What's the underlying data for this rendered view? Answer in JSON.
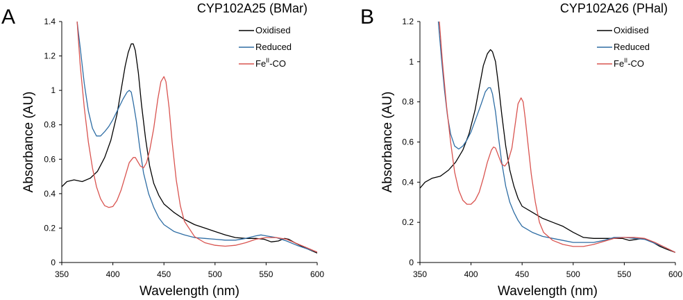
{
  "colors": {
    "axis": "#000000",
    "series": [
      "#000000",
      "#2e6da4",
      "#d9534f"
    ]
  },
  "chart_data": [
    {
      "type": "line",
      "panel_letter": "A",
      "title": "CYP102A25 (BMar)",
      "xlabel": "Wavelength (nm)",
      "ylabel": "Absorbance (AU)",
      "xlim": [
        350,
        600
      ],
      "ylim": [
        0,
        1.4
      ],
      "x_ticks": [
        "350",
        "400",
        "450",
        "500",
        "550",
        "600"
      ],
      "y_ticks": [
        "0",
        "0.2",
        "0.4",
        "0.6",
        "0.8",
        "1",
        "1.2",
        "1.4"
      ],
      "grid": false,
      "legend_position": "top-right",
      "series": [
        {
          "name": "Oxidised",
          "x": [
            350,
            355,
            362,
            370,
            378,
            385,
            392,
            398,
            404,
            408,
            412,
            415,
            418,
            420,
            422,
            425,
            428,
            432,
            436,
            440,
            445,
            450,
            460,
            470,
            480,
            490,
            500,
            510,
            520,
            530,
            540,
            548,
            555,
            562,
            568,
            572,
            578,
            585,
            592,
            600
          ],
          "y": [
            0.44,
            0.47,
            0.48,
            0.47,
            0.49,
            0.53,
            0.61,
            0.71,
            0.86,
            1.0,
            1.14,
            1.22,
            1.27,
            1.27,
            1.23,
            1.1,
            0.92,
            0.72,
            0.56,
            0.46,
            0.39,
            0.34,
            0.29,
            0.25,
            0.22,
            0.2,
            0.18,
            0.16,
            0.145,
            0.14,
            0.14,
            0.135,
            0.12,
            0.125,
            0.14,
            0.135,
            0.115,
            0.095,
            0.075,
            0.055
          ]
        },
        {
          "name": "Reduced",
          "x": [
            365,
            368,
            372,
            376,
            380,
            384,
            388,
            392,
            396,
            400,
            405,
            410,
            414,
            416,
            418,
            420,
            423,
            426,
            430,
            435,
            440,
            445,
            450,
            460,
            470,
            480,
            490,
            500,
            510,
            520,
            530,
            540,
            545,
            550,
            560,
            570,
            580,
            590,
            600
          ],
          "y": [
            1.4,
            1.25,
            1.04,
            0.88,
            0.78,
            0.735,
            0.735,
            0.76,
            0.79,
            0.83,
            0.89,
            0.95,
            0.99,
            1.0,
            0.99,
            0.93,
            0.82,
            0.68,
            0.52,
            0.4,
            0.32,
            0.26,
            0.22,
            0.18,
            0.16,
            0.145,
            0.14,
            0.135,
            0.13,
            0.13,
            0.14,
            0.155,
            0.16,
            0.155,
            0.145,
            0.125,
            0.1,
            0.08,
            0.06
          ]
        },
        {
          "name": "FeII-CO",
          "x": [
            365,
            368,
            372,
            376,
            380,
            384,
            388,
            392,
            396,
            400,
            404,
            408,
            412,
            416,
            420,
            422,
            424,
            427,
            430,
            433,
            436,
            440,
            444,
            447,
            450,
            452,
            455,
            458,
            462,
            466,
            470,
            480,
            490,
            500,
            510,
            520,
            530,
            540,
            550,
            560,
            570,
            580,
            590,
            600
          ],
          "y": [
            1.4,
            1.15,
            0.9,
            0.7,
            0.55,
            0.44,
            0.37,
            0.33,
            0.32,
            0.325,
            0.36,
            0.42,
            0.5,
            0.58,
            0.61,
            0.61,
            0.59,
            0.56,
            0.55,
            0.58,
            0.65,
            0.78,
            0.95,
            1.05,
            1.08,
            1.05,
            0.9,
            0.7,
            0.48,
            0.33,
            0.24,
            0.15,
            0.115,
            0.1,
            0.095,
            0.1,
            0.115,
            0.135,
            0.145,
            0.145,
            0.135,
            0.11,
            0.085,
            0.06
          ]
        }
      ],
      "legend": {
        "entries": [
          {
            "base": "Oxidised",
            "sup": "",
            "rest": ""
          },
          {
            "base": "Reduced",
            "sup": "",
            "rest": ""
          },
          {
            "base": "Fe",
            "sup": "II",
            "rest": "-CO"
          }
        ]
      }
    },
    {
      "type": "line",
      "panel_letter": "B",
      "title": "CYP102A26 (PHal)",
      "xlabel": "Wavelength (nm)",
      "ylabel": "Absorbance (AU)",
      "xlim": [
        350,
        600
      ],
      "ylim": [
        0,
        1.2
      ],
      "x_ticks": [
        "350",
        "400",
        "450",
        "500",
        "550",
        "600"
      ],
      "y_ticks": [
        "0",
        "0.2",
        "0.4",
        "0.6",
        "0.8",
        "1",
        "1.2"
      ],
      "grid": false,
      "legend_position": "top-right",
      "series": [
        {
          "name": "Oxidised",
          "x": [
            350,
            355,
            362,
            370,
            378,
            385,
            392,
            398,
            404,
            408,
            412,
            416,
            419,
            421,
            424,
            427,
            430,
            434,
            438,
            442,
            446,
            450,
            460,
            470,
            480,
            490,
            500,
            510,
            520,
            530,
            540,
            548,
            555,
            562,
            568,
            572,
            578,
            585,
            592,
            600
          ],
          "y": [
            0.37,
            0.4,
            0.42,
            0.43,
            0.46,
            0.5,
            0.56,
            0.64,
            0.76,
            0.87,
            0.98,
            1.04,
            1.06,
            1.05,
            1.0,
            0.88,
            0.74,
            0.58,
            0.46,
            0.38,
            0.32,
            0.28,
            0.25,
            0.22,
            0.2,
            0.18,
            0.15,
            0.125,
            0.12,
            0.12,
            0.12,
            0.12,
            0.11,
            0.115,
            0.12,
            0.115,
            0.1,
            0.08,
            0.065,
            0.05
          ]
        },
        {
          "name": "Reduced",
          "x": [
            368,
            371,
            374,
            377,
            380,
            384,
            388,
            392,
            396,
            400,
            405,
            410,
            414,
            417,
            419,
            421,
            424,
            427,
            430,
            434,
            438,
            442,
            446,
            450,
            460,
            470,
            480,
            490,
            500,
            510,
            520,
            530,
            540,
            550,
            560,
            570,
            580,
            590,
            600
          ],
          "y": [
            1.2,
            1.02,
            0.86,
            0.73,
            0.64,
            0.58,
            0.565,
            0.58,
            0.61,
            0.65,
            0.72,
            0.79,
            0.85,
            0.87,
            0.87,
            0.84,
            0.75,
            0.62,
            0.5,
            0.38,
            0.3,
            0.25,
            0.21,
            0.18,
            0.15,
            0.13,
            0.12,
            0.11,
            0.1,
            0.1,
            0.1,
            0.11,
            0.125,
            0.125,
            0.12,
            0.115,
            0.095,
            0.075,
            0.05
          ]
        },
        {
          "name": "FeII-CO",
          "x": [
            369,
            372,
            376,
            380,
            384,
            388,
            392,
            396,
            400,
            404,
            408,
            412,
            416,
            420,
            422,
            424,
            427,
            430,
            433,
            436,
            440,
            443,
            446,
            449,
            451,
            453,
            456,
            459,
            463,
            467,
            471,
            480,
            490,
            500,
            510,
            520,
            530,
            540,
            550,
            560,
            570,
            580,
            590,
            600
          ],
          "y": [
            1.2,
            1.0,
            0.78,
            0.6,
            0.45,
            0.36,
            0.31,
            0.29,
            0.29,
            0.31,
            0.35,
            0.42,
            0.5,
            0.56,
            0.575,
            0.57,
            0.53,
            0.49,
            0.48,
            0.5,
            0.57,
            0.68,
            0.79,
            0.82,
            0.8,
            0.72,
            0.58,
            0.44,
            0.3,
            0.2,
            0.15,
            0.11,
            0.09,
            0.08,
            0.08,
            0.09,
            0.105,
            0.12,
            0.125,
            0.125,
            0.12,
            0.1,
            0.075,
            0.05
          ]
        }
      ],
      "legend": {
        "entries": [
          {
            "base": "Oxidised",
            "sup": "",
            "rest": ""
          },
          {
            "base": "Reduced",
            "sup": "",
            "rest": ""
          },
          {
            "base": "Fe",
            "sup": "II",
            "rest": "-CO"
          }
        ]
      }
    }
  ]
}
